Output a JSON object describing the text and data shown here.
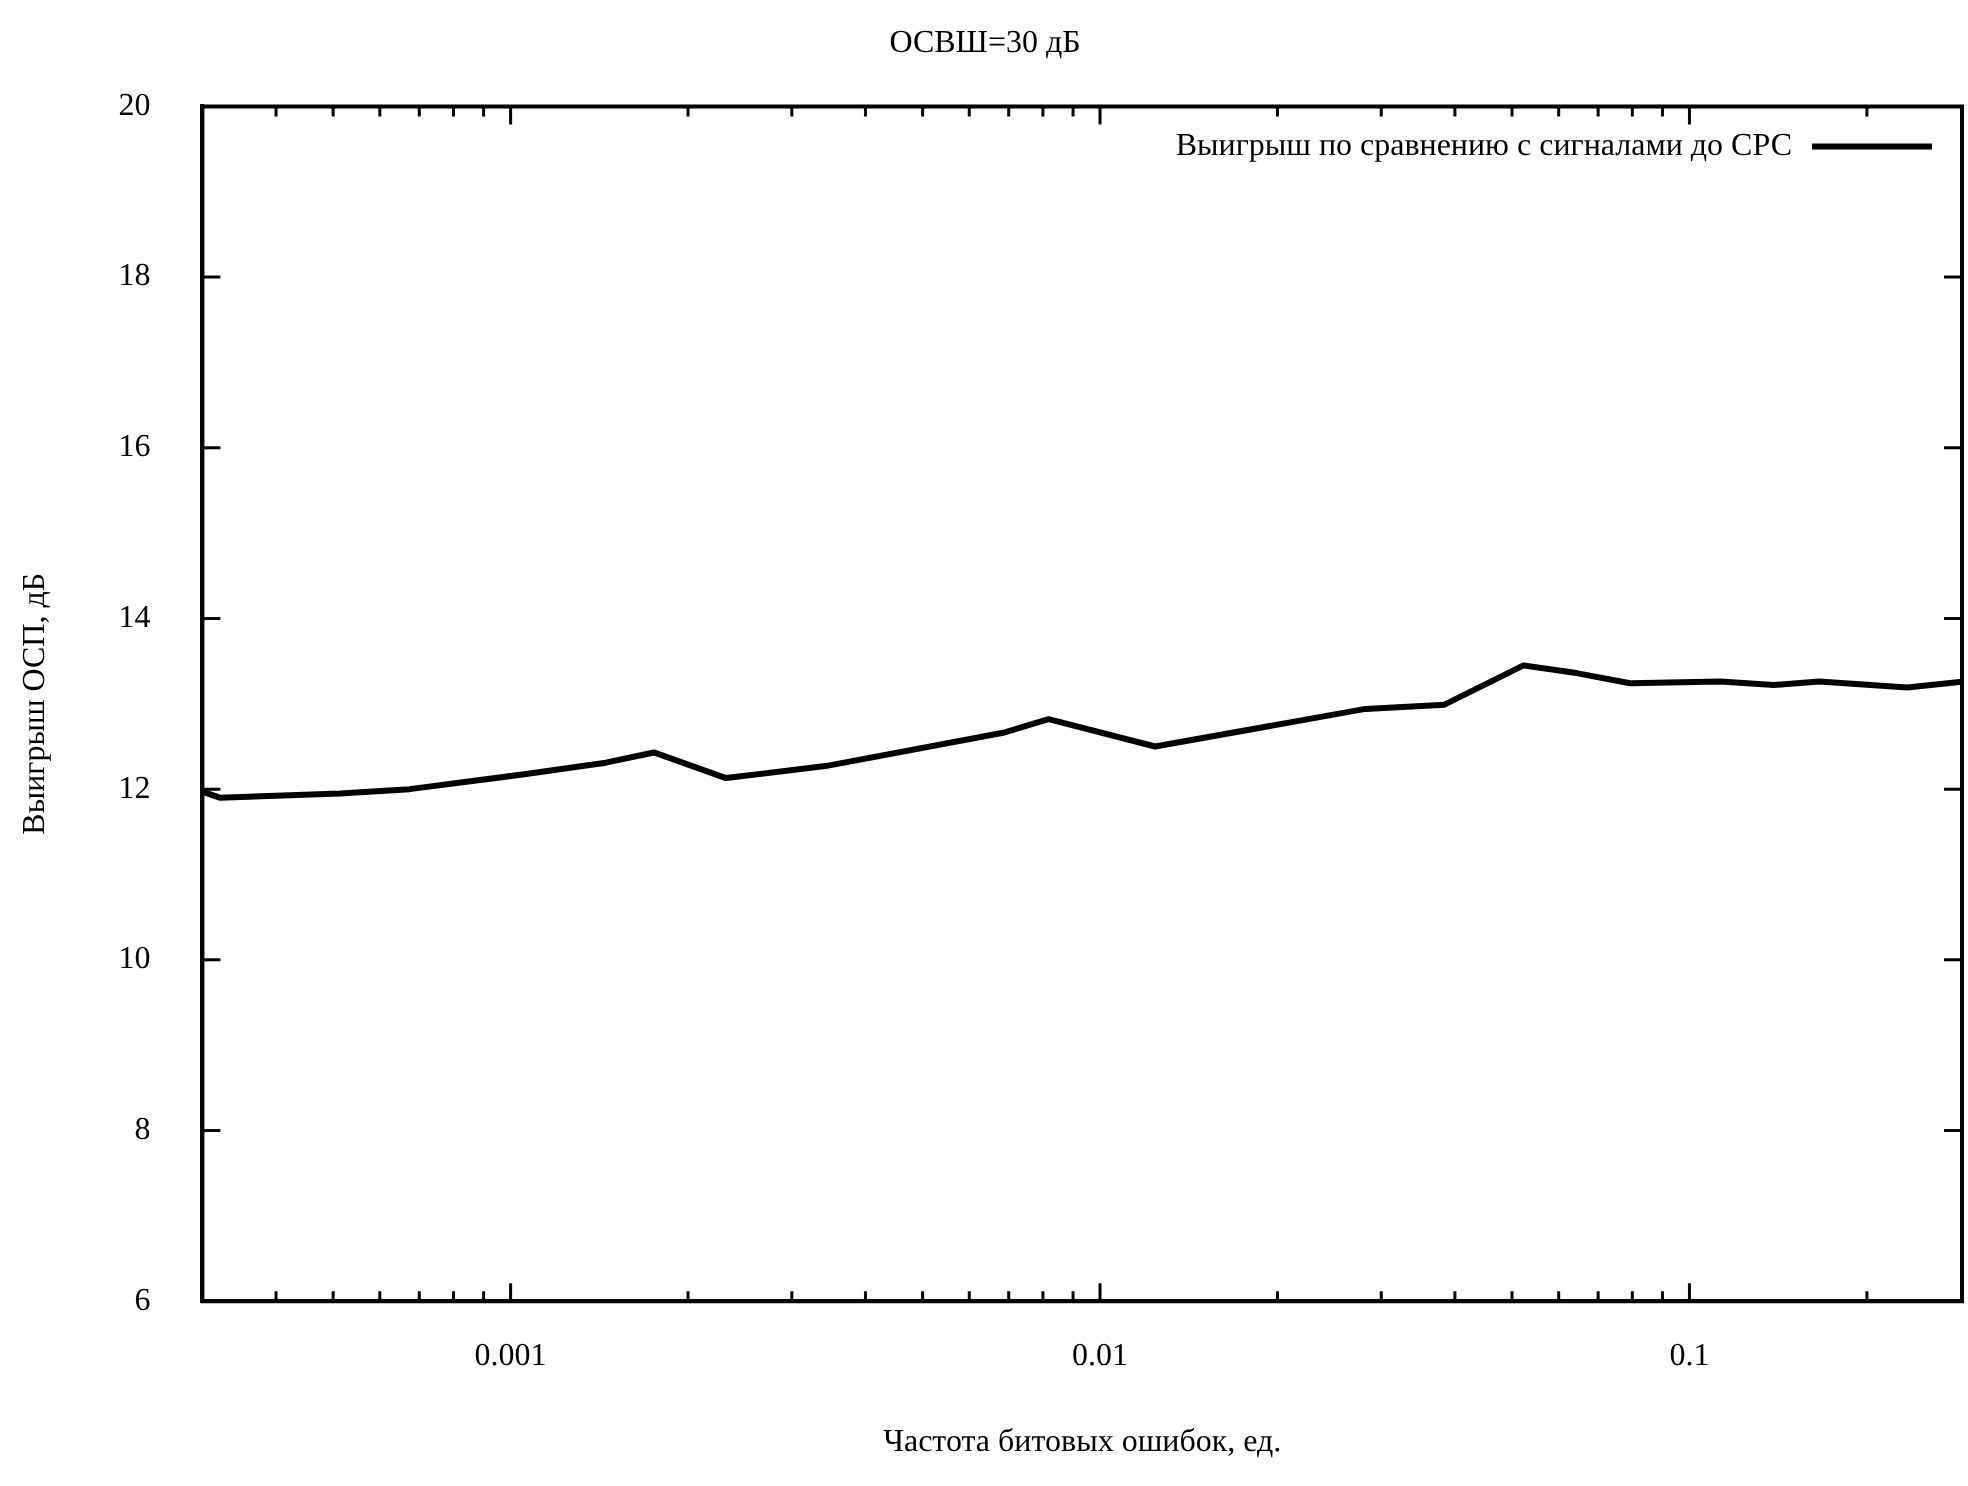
{
  "chart_data": {
    "type": "line",
    "title": "ОСВШ=30 дБ",
    "xlabel": "Частота битовых ошибок, ед.",
    "ylabel": "Выигрыш ОСП, дБ",
    "log": "x",
    "xlim": [
      0.0003,
      0.29
    ],
    "ylim": [
      6,
      20
    ],
    "xticks": [
      {
        "value": 0.0004,
        "label": null
      },
      {
        "value": 0.0005,
        "label": null
      },
      {
        "value": 0.0006,
        "label": null
      },
      {
        "value": 0.0007,
        "label": null
      },
      {
        "value": 0.0008,
        "label": null
      },
      {
        "value": 0.0009,
        "label": null
      },
      0.001,
      {
        "value": 0.002,
        "label": null
      },
      {
        "value": 0.003,
        "label": null
      },
      {
        "value": 0.004,
        "label": null
      },
      {
        "value": 0.005,
        "label": null
      },
      {
        "value": 0.006,
        "label": null
      },
      {
        "value": 0.007,
        "label": null
      },
      {
        "value": 0.008,
        "label": null
      },
      {
        "value": 0.009,
        "label": null
      },
      0.01,
      {
        "value": 0.02,
        "label": null
      },
      {
        "value": 0.03,
        "label": null
      },
      {
        "value": 0.04,
        "label": null
      },
      {
        "value": 0.05,
        "label": null
      },
      {
        "value": 0.06,
        "label": null
      },
      {
        "value": 0.07,
        "label": null
      },
      {
        "value": 0.08,
        "label": null
      },
      {
        "value": 0.09,
        "label": null
      },
      0.1,
      {
        "value": 0.2,
        "label": null
      }
    ],
    "yticks": [
      6,
      8,
      10,
      12,
      14,
      16,
      18,
      20
    ],
    "grid": false,
    "legend": "top right",
    "marker": "none",
    "line_style": "solid",
    "series": [
      {
        "name": "Выигрыш по сравнению с сигналами до СРС",
        "color": "#000000",
        "x": [
          0.0003,
          0.000321,
          0.000514,
          0.000674,
          0.00107,
          0.00145,
          0.00175,
          0.00232,
          0.00342,
          0.00685,
          0.00818,
          0.0124,
          0.0282,
          0.0384,
          0.0523,
          0.0643,
          0.0793,
          0.113,
          0.139,
          0.166,
          0.234,
          0.29
        ],
        "values": [
          11.97,
          11.9,
          11.95,
          12.0,
          12.18,
          12.31,
          12.43,
          12.13,
          12.27,
          12.66,
          12.82,
          12.5,
          12.94,
          12.99,
          13.45,
          13.36,
          13.24,
          13.26,
          13.22,
          13.26,
          13.19,
          13.26
        ]
      }
    ]
  }
}
